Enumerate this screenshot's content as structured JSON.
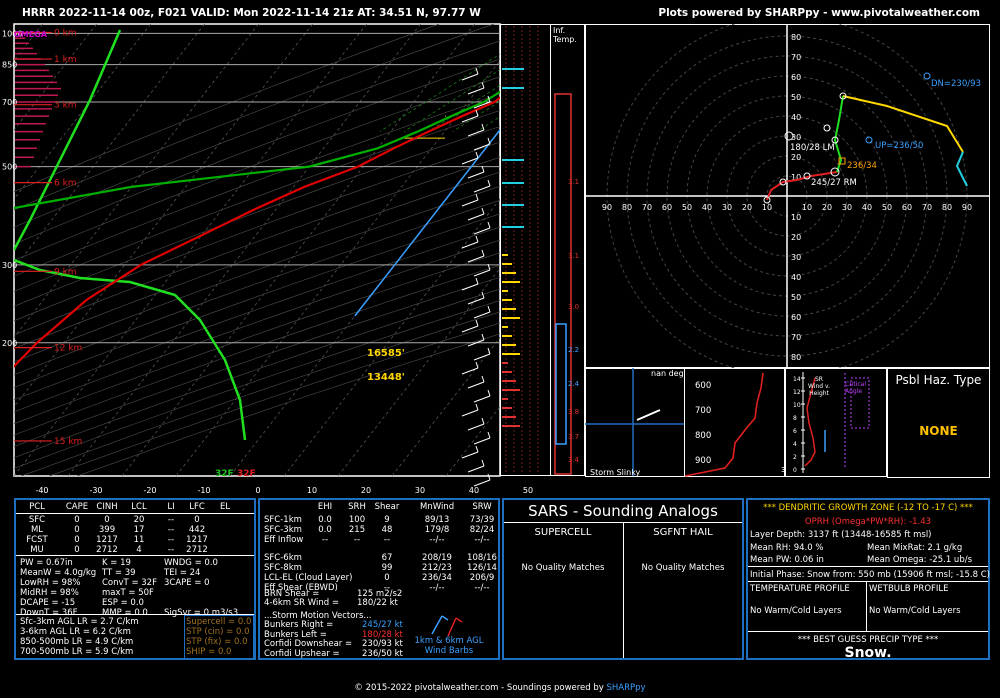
{
  "header": {
    "left": "HRRR 2022-11-14 00z, F021   VALID: Mon 2022-11-14 21z   AT: 34.51 N, 97.77 W",
    "right": "Plots powered by SHARPpy - www.pivotalweather.com"
  },
  "footer": {
    "text": "© 2015-2022 pivotalweather.com - Soundings powered by ",
    "brand": "SHARPpy"
  },
  "skewt": {
    "omega_label": "OMEGA",
    "km_labels": [
      "15 km",
      "12 km",
      "9 km",
      "6 km",
      "3 km",
      "1 km",
      "0 km"
    ],
    "pressure_labels": [
      "200",
      "300",
      "500",
      "700",
      "850",
      "1000"
    ],
    "temp_ticks": [
      "-40",
      "-30",
      "-20",
      "-10",
      "0",
      "10",
      "20",
      "30",
      "40",
      "50"
    ],
    "sfc_temp": "32F",
    "sfc_dew": "32F",
    "dgz_top": "16585'",
    "dgz_bot": "13448'"
  },
  "chart_data": {
    "type": "line",
    "title": "",
    "series": [
      {
        "name": "Temperature",
        "color": "#e00000",
        "points": [
          [
            -2,
            1000
          ],
          [
            0,
            960
          ],
          [
            1,
            925
          ],
          [
            0,
            900
          ],
          [
            -2,
            850
          ],
          [
            -3,
            800
          ],
          [
            -4,
            750
          ],
          [
            -5,
            700
          ],
          [
            -9,
            650
          ],
          [
            -13,
            600
          ],
          [
            -17,
            550
          ],
          [
            -21,
            500
          ],
          [
            -28,
            450
          ],
          [
            -34,
            400
          ],
          [
            -40,
            350
          ],
          [
            -47,
            300
          ],
          [
            -52,
            250
          ],
          [
            -55,
            200
          ],
          [
            -57,
            150
          ]
        ]
      },
      {
        "name": "Dewpoint",
        "color": "#00b000",
        "points": [
          [
            -2,
            1000
          ],
          [
            0,
            960
          ],
          [
            1,
            925
          ],
          [
            -1,
            900
          ],
          [
            -2,
            850
          ],
          [
            -4,
            800
          ],
          [
            -5,
            750
          ],
          [
            -7,
            700
          ],
          [
            -11,
            650
          ],
          [
            -15,
            600
          ],
          [
            -20,
            550
          ],
          [
            -30,
            500
          ],
          [
            -60,
            450
          ],
          [
            -80,
            400
          ]
        ]
      }
    ],
    "xlabel": "",
    "ylabel": "",
    "xlim": [
      -40,
      50
    ],
    "ylim": [
      1050,
      100
    ]
  },
  "inflow": {
    "title1": "Inf.",
    "title2": "Temp."
  },
  "hodograph": {
    "ring_labels": [
      "80",
      "70",
      "60",
      "50",
      "40",
      "30",
      "20",
      "10"
    ],
    "x_ticks": [
      "90",
      "80",
      "70",
      "60",
      "50",
      "40",
      "30",
      "20",
      "10",
      "10",
      "20",
      "30",
      "40",
      "50",
      "60",
      "70",
      "80",
      "90"
    ],
    "labels": {
      "dn": "DN=230/93",
      "up": "UP=236/50",
      "lm": "180/28 LM",
      "mean": "236/34",
      "rm": "245/27 RM"
    }
  },
  "storm_slinky": {
    "label": "Storm Slinky",
    "nan": "nan deg",
    "levels": [
      "600",
      "700",
      "800",
      "900"
    ]
  },
  "srwind": {
    "title": "SR Wind v. Height",
    "legend": "Critical Angle",
    "heights": [
      "14",
      "12",
      "10",
      "8",
      "6",
      "4",
      "2",
      "0"
    ]
  },
  "hazard": {
    "title": "Psbl Haz. Type",
    "value": "NONE"
  },
  "parcel_table": {
    "headers": [
      "PCL",
      "CAPE",
      "CINH",
      "LCL",
      "LI",
      "LFC",
      "EL"
    ],
    "rows": [
      [
        "SFC",
        "0",
        "0",
        "20",
        "--",
        "0",
        ""
      ],
      [
        "ML",
        "0",
        "399",
        "17",
        "--",
        "442",
        ""
      ],
      [
        "FCST",
        "0",
        "1217",
        "11",
        "--",
        "1217",
        ""
      ],
      [
        "MU",
        "0",
        "2712",
        "4",
        "--",
        "2712",
        ""
      ]
    ]
  },
  "indices": {
    "col1": [
      "PW = 0.67in",
      "MeanW = 4.0g/kg",
      "LowRH = 98%",
      "MidRH = 98%",
      "DCAPE = -15",
      "DownT = 36F"
    ],
    "col2": [
      "K = 19",
      "TT = 39",
      "ConvT = 32F",
      "maxT = 50F",
      "ESP = 0.0",
      "MMP = 0.0"
    ],
    "col3": [
      "WNDG = 0.0",
      "TEI = 24",
      "3CAPE = 0",
      "",
      "",
      "SigSvr = 0 m3/s3"
    ]
  },
  "lapse": [
    "Sfc-3km AGL LR = 2.7 C/km",
    "3-6km AGL LR = 6.2 C/km",
    "850-500mb LR = 4.9 C/km",
    "700-500mb LR = 5.9 C/km"
  ],
  "composites": [
    "Supercell = 0.0",
    "STP (cin) = 0.0",
    "STP (fix) = 0.0",
    "SHIP = 0.0"
  ],
  "kinematics": {
    "headers": [
      "EHI",
      "SRH",
      "Shear",
      "MnWind",
      "SRW"
    ],
    "rows": [
      [
        "SFC-1km",
        "0.0",
        "100",
        "9",
        "89/13",
        "73/39"
      ],
      [
        "SFC-3km",
        "0.0",
        "215",
        "48",
        "179/8",
        "82/24"
      ],
      [
        "Eff Inflow",
        "--",
        "--",
        "--",
        "--/--",
        "--/--"
      ],
      [
        "SFC-6km",
        "",
        "",
        "67",
        "208/19",
        "108/16"
      ],
      [
        "SFC-8km",
        "",
        "",
        "99",
        "212/23",
        "126/14"
      ],
      [
        "LCL-EL (Cloud Layer)",
        "",
        "",
        "0",
        "236/34",
        "206/9"
      ],
      [
        "Eff Shear (EBWD)",
        "",
        "",
        "--",
        "--/--",
        "--/--"
      ]
    ],
    "brn_shear": [
      "BRN Shear =",
      "125 m2/s2"
    ],
    "sr_wind": [
      "4-6km SR Wind =",
      "180/22 kt"
    ],
    "storm_title": "...Storm Motion Vectors...",
    "storm": [
      [
        "Bunkers Right =",
        "245/27 kt"
      ],
      [
        "Bunkers Left =",
        "180/28 kt"
      ],
      [
        "Corfidi Downshear =",
        "230/93 kt"
      ],
      [
        "Corfidi Upshear =",
        "236/50 kt"
      ]
    ],
    "barb_note": [
      "1km & 6km AGL",
      "Wind Barbs"
    ]
  },
  "sars": {
    "title": "SARS - Sounding Analogs",
    "col1": "SUPERCELL",
    "col2": "SGFNT HAIL",
    "nq1": "No Quality Matches",
    "nq2": "No Quality Matches"
  },
  "dgz": {
    "title": "*** DENDRITIC GROWTH ZONE (-12 TO -17 C) ***",
    "oprh": "OPRH (Omega*PW*RH): -1.43",
    "layer": "Layer Depth: 3137 ft (13448-16585 ft msl)",
    "mean_rh": "Mean RH: 94.0 %",
    "mean_mixrat": "Mean MixRat: 2.1 g/kg",
    "mean_pw": "Mean PW: 0.06 in",
    "mean_omega": "Mean Omega: -25.1 ub/s",
    "initial_phase": "Initial Phase: Snow from: 550 mb (15906 ft msl; -15.8 C)",
    "temp_profile": "TEMPERATURE PROFILE",
    "wetbulb_profile": "WETBULB PROFILE",
    "nwc1": "No Warm/Cold Layers",
    "nwc2": "No Warm/Cold Layers",
    "precip_title": "*** BEST GUESS PRECIP TYPE ***",
    "precip": "Snow."
  }
}
